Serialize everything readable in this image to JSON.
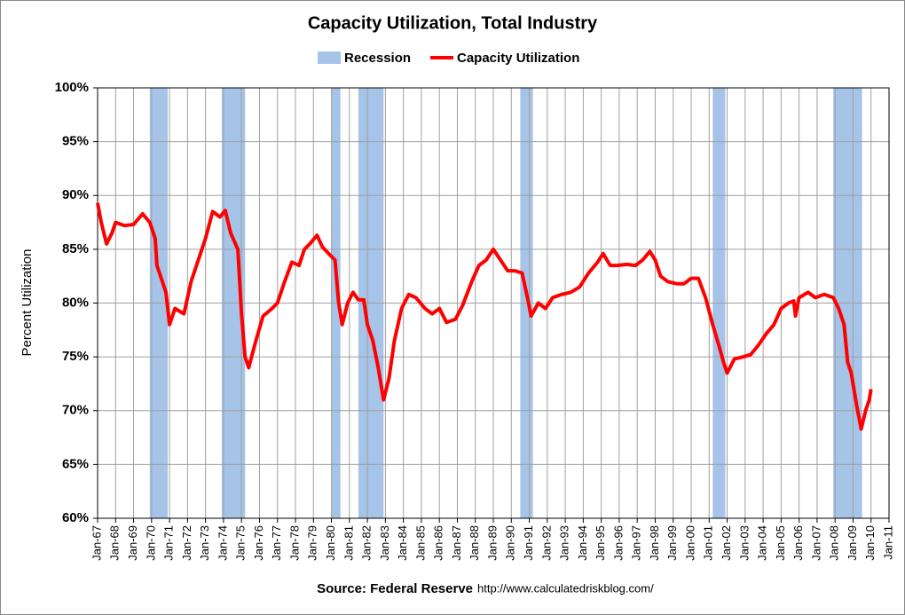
{
  "chart_data": {
    "type": "line",
    "title": "Capacity Utilization, Total Industry",
    "y_label": "Percent Utilization",
    "source": "Source: Federal Reserve",
    "url": "http://www.calculatedriskblog.com/",
    "x": [
      1967.0,
      1967.2,
      1967.5,
      1967.8,
      1968.0,
      1968.5,
      1969.0,
      1969.5,
      1969.9,
      1970.2,
      1970.3,
      1970.8,
      1971.0,
      1971.3,
      1971.8,
      1972.2,
      1972.6,
      1973.0,
      1973.4,
      1973.8,
      1974.1,
      1974.4,
      1974.8,
      1975.0,
      1975.2,
      1975.4,
      1975.8,
      1976.2,
      1976.7,
      1977.0,
      1977.4,
      1977.8,
      1978.2,
      1978.5,
      1978.8,
      1979.2,
      1979.5,
      1979.9,
      1980.2,
      1980.4,
      1980.6,
      1980.9,
      1981.2,
      1981.5,
      1981.8,
      1982.0,
      1982.3,
      1982.6,
      1982.9,
      1983.2,
      1983.5,
      1983.9,
      1984.3,
      1984.7,
      1985.2,
      1985.6,
      1986.0,
      1986.4,
      1986.9,
      1987.3,
      1987.8,
      1988.2,
      1988.6,
      1989.0,
      1989.4,
      1989.8,
      1990.2,
      1990.6,
      1990.9,
      1991.1,
      1991.5,
      1991.9,
      1992.3,
      1992.8,
      1993.3,
      1993.8,
      1994.3,
      1994.8,
      1995.1,
      1995.5,
      1995.9,
      1996.4,
      1996.9,
      1997.3,
      1997.7,
      1998.0,
      1998.3,
      1998.7,
      1999.2,
      1999.6,
      2000.0,
      2000.4,
      2000.8,
      2001.2,
      2001.5,
      2001.8,
      2002.0,
      2002.4,
      2002.9,
      2003.3,
      2003.7,
      2004.2,
      2004.6,
      2005.0,
      2005.4,
      2005.7,
      2005.8,
      2006.0,
      2006.5,
      2006.9,
      2007.4,
      2007.9,
      2008.2,
      2008.5,
      2008.7,
      2008.9,
      2009.2,
      2009.45,
      2009.7,
      2009.9,
      2010.0
    ],
    "series": [
      {
        "name": "Capacity Utilization",
        "color": "#ff0000",
        "values": [
          89.3,
          87.5,
          85.5,
          86.5,
          87.5,
          87.2,
          87.3,
          88.3,
          87.5,
          86,
          83.5,
          81,
          78,
          79.5,
          79,
          82,
          84,
          86,
          88.5,
          88,
          88.6,
          86.5,
          85,
          79,
          75,
          74,
          76.5,
          78.8,
          79.5,
          80,
          82,
          83.8,
          83.5,
          85,
          85.5,
          86.3,
          85.2,
          84.5,
          84,
          80,
          78,
          80,
          81,
          80.3,
          80.3,
          78,
          76.5,
          74,
          71,
          73,
          76.5,
          79.5,
          80.8,
          80.5,
          79.5,
          79,
          79.5,
          78.2,
          78.5,
          79.8,
          82,
          83.5,
          84,
          85,
          84,
          83,
          83,
          82.8,
          80.5,
          78.8,
          80,
          79.5,
          80.5,
          80.8,
          81,
          81.5,
          82.8,
          83.8,
          84.6,
          83.5,
          83.5,
          83.6,
          83.5,
          84,
          84.8,
          84,
          82.5,
          82,
          81.8,
          81.8,
          82.3,
          82.3,
          80.5,
          78,
          76.3,
          74.5,
          73.5,
          74.8,
          75,
          75.2,
          76,
          77.2,
          78,
          79.5,
          80,
          80.2,
          78.8,
          80.5,
          81,
          80.5,
          80.8,
          80.5,
          79.5,
          78,
          74.5,
          73.5,
          70.5,
          68.3,
          70,
          71,
          72
        ]
      }
    ],
    "recessions": {
      "name": "Recession",
      "color": "#a6c3e8",
      "periods": [
        [
          1969.9,
          1970.9
        ],
        [
          1973.9,
          1975.2
        ],
        [
          1980.0,
          1980.5
        ],
        [
          1981.5,
          1982.9
        ],
        [
          1990.5,
          1991.2
        ],
        [
          2001.2,
          2001.9
        ],
        [
          2007.9,
          2009.5
        ]
      ]
    },
    "xlim": [
      1967,
      2011
    ],
    "xticks": [
      {
        "value": 1967,
        "label": "Jan-67"
      },
      {
        "value": 1968,
        "label": "Jan-68"
      },
      {
        "value": 1969,
        "label": "Jan-69"
      },
      {
        "value": 1970,
        "label": "Jan-70"
      },
      {
        "value": 1971,
        "label": "Jan-71"
      },
      {
        "value": 1972,
        "label": "Jan-72"
      },
      {
        "value": 1973,
        "label": "Jan-73"
      },
      {
        "value": 1974,
        "label": "Jan-74"
      },
      {
        "value": 1975,
        "label": "Jan-75"
      },
      {
        "value": 1976,
        "label": "Jan-76"
      },
      {
        "value": 1977,
        "label": "Jan-77"
      },
      {
        "value": 1978,
        "label": "Jan-78"
      },
      {
        "value": 1979,
        "label": "Jan-79"
      },
      {
        "value": 1980,
        "label": "Jan-80"
      },
      {
        "value": 1981,
        "label": "Jan-81"
      },
      {
        "value": 1982,
        "label": "Jan-82"
      },
      {
        "value": 1983,
        "label": "Jan-83"
      },
      {
        "value": 1984,
        "label": "Jan-84"
      },
      {
        "value": 1985,
        "label": "Jan-85"
      },
      {
        "value": 1986,
        "label": "Jan-86"
      },
      {
        "value": 1987,
        "label": "Jan-87"
      },
      {
        "value": 1988,
        "label": "Jan-88"
      },
      {
        "value": 1989,
        "label": "Jan-89"
      },
      {
        "value": 1990,
        "label": "Jan-90"
      },
      {
        "value": 1991,
        "label": "Jan-91"
      },
      {
        "value": 1992,
        "label": "Jan-92"
      },
      {
        "value": 1993,
        "label": "Jan-93"
      },
      {
        "value": 1994,
        "label": "Jan-94"
      },
      {
        "value": 1995,
        "label": "Jan-95"
      },
      {
        "value": 1996,
        "label": "Jan-96"
      },
      {
        "value": 1997,
        "label": "Jan-97"
      },
      {
        "value": 1998,
        "label": "Jan-98"
      },
      {
        "value": 1999,
        "label": "Jan-99"
      },
      {
        "value": 2000,
        "label": "Jan-00"
      },
      {
        "value": 2001,
        "label": "Jan-01"
      },
      {
        "value": 2002,
        "label": "Jan-02"
      },
      {
        "value": 2003,
        "label": "Jan-03"
      },
      {
        "value": 2004,
        "label": "Jan-04"
      },
      {
        "value": 2005,
        "label": "Jan-05"
      },
      {
        "value": 2006,
        "label": "Jan-06"
      },
      {
        "value": 2007,
        "label": "Jan-07"
      },
      {
        "value": 2008,
        "label": "Jan-08"
      },
      {
        "value": 2009,
        "label": "Jan-09"
      },
      {
        "value": 2010,
        "label": "Jan-10"
      },
      {
        "value": 2011,
        "label": "Jan-11"
      }
    ],
    "ylim": [
      60,
      100
    ],
    "yticks": [
      {
        "value": 60,
        "label": "60%"
      },
      {
        "value": 65,
        "label": "65%"
      },
      {
        "value": 70,
        "label": "70%"
      },
      {
        "value": 75,
        "label": "75%"
      },
      {
        "value": 80,
        "label": "80%"
      },
      {
        "value": 85,
        "label": "85%"
      },
      {
        "value": 90,
        "label": "90%"
      },
      {
        "value": 95,
        "label": "95%"
      },
      {
        "value": 100,
        "label": "100%"
      }
    ],
    "grid": true
  }
}
